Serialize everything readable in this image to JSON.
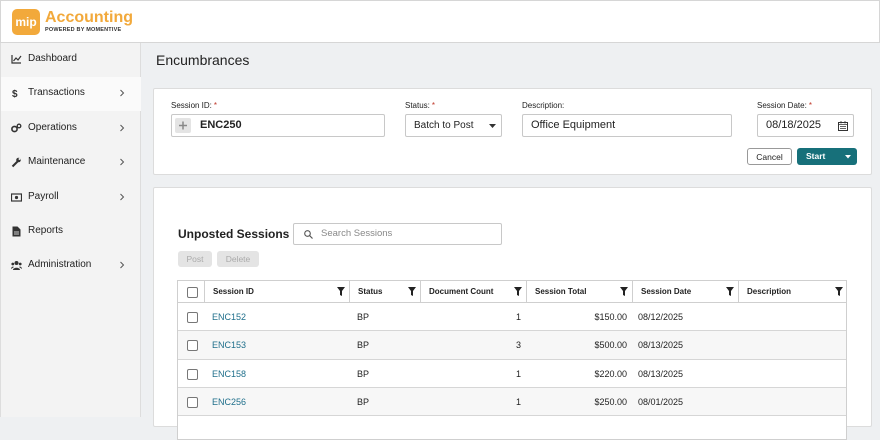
{
  "header": {
    "logo_mark": "mip",
    "app_name": "Accounting",
    "tagline": "POWERED BY MOMENTIVE"
  },
  "sidebar": {
    "active": 1,
    "items": [
      {
        "label": "Dashboard",
        "icon": "chart",
        "expandable": false
      },
      {
        "label": "Transactions",
        "icon": "dollar",
        "expandable": true
      },
      {
        "label": "Operations",
        "icon": "gears",
        "expandable": true
      },
      {
        "label": "Maintenance",
        "icon": "wrench",
        "expandable": true
      },
      {
        "label": "Payroll",
        "icon": "money",
        "expandable": true
      },
      {
        "label": "Reports",
        "icon": "doc",
        "expandable": false
      },
      {
        "label": "Administration",
        "icon": "users",
        "expandable": true
      }
    ]
  },
  "page_title": "Encumbrances",
  "form": {
    "required_marker": "*",
    "session_id": {
      "label": "Session ID:",
      "required": true,
      "value": "ENC250"
    },
    "status": {
      "label": "Status:",
      "required": true,
      "value": "Batch to Post"
    },
    "description": {
      "label": "Description:",
      "required": false,
      "value": "Office Equipment"
    },
    "session_date": {
      "label": "Session Date:",
      "required": true,
      "value": "08/18/2025"
    },
    "cancel": "Cancel",
    "start": "Start"
  },
  "sessions": {
    "title": "Unposted Sessions |",
    "search_placeholder": "Search Sessions",
    "actions": [
      "Post",
      "Delete"
    ],
    "columns": [
      "Session ID",
      "Status",
      "Document Count",
      "Session Total",
      "Session Date",
      "Description"
    ],
    "rows": [
      [
        "ENC152",
        "BP",
        1,
        "$150.00",
        "08/12/2025"
      ],
      [
        "ENC153",
        "BP",
        3,
        "$500.00",
        "08/13/2025"
      ],
      [
        "ENC158",
        "BP",
        1,
        "$220.00",
        "08/13/2025"
      ],
      [
        "ENC256",
        "BP",
        1,
        "$250.00",
        "08/01/2025"
      ]
    ]
  }
}
